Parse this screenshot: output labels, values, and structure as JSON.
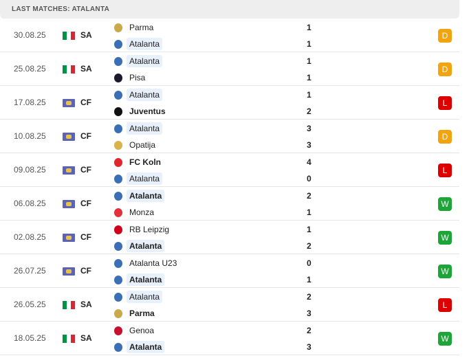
{
  "header": "LAST MATCHES: ATALANTA",
  "colors": {
    "D": "#f2a40e",
    "L": "#dc0000",
    "W": "#1ea537",
    "highlight": "#e8f0fb"
  },
  "matches": [
    {
      "date": "30.08.25",
      "flag": "italy",
      "comp": "SA",
      "home": "Parma",
      "away": "Atalanta",
      "hs": "1",
      "as": "1",
      "result": "D",
      "winner": "",
      "hl": "away",
      "hlogo": "#c9a94a",
      "alogo": "#3a6fb5"
    },
    {
      "date": "25.08.25",
      "flag": "italy",
      "comp": "SA",
      "home": "Atalanta",
      "away": "Pisa",
      "hs": "1",
      "as": "1",
      "result": "D",
      "winner": "",
      "hl": "home",
      "hlogo": "#3a6fb5",
      "alogo": "#1a1a2e"
    },
    {
      "date": "17.08.25",
      "flag": "world",
      "comp": "CF",
      "home": "Atalanta",
      "away": "Juventus",
      "hs": "1",
      "as": "2",
      "result": "L",
      "winner": "away",
      "hl": "home",
      "hlogo": "#3a6fb5",
      "alogo": "#111111"
    },
    {
      "date": "10.08.25",
      "flag": "world",
      "comp": "CF",
      "home": "Atalanta",
      "away": "Opatija",
      "hs": "3",
      "as": "3",
      "result": "D",
      "winner": "",
      "hl": "home",
      "hlogo": "#3a6fb5",
      "alogo": "#d9b24a"
    },
    {
      "date": "09.08.25",
      "flag": "world",
      "comp": "CF",
      "home": "FC Koln",
      "away": "Atalanta",
      "hs": "4",
      "as": "0",
      "result": "L",
      "winner": "home",
      "hl": "away",
      "hlogo": "#e0262c",
      "alogo": "#3a6fb5"
    },
    {
      "date": "06.08.25",
      "flag": "world",
      "comp": "CF",
      "home": "Atalanta",
      "away": "Monza",
      "hs": "2",
      "as": "1",
      "result": "W",
      "winner": "home",
      "hl": "home",
      "hlogo": "#3a6fb5",
      "alogo": "#e2313a"
    },
    {
      "date": "02.08.25",
      "flag": "world",
      "comp": "CF",
      "home": "RB Leipzig",
      "away": "Atalanta",
      "hs": "1",
      "as": "2",
      "result": "W",
      "winner": "away",
      "hl": "away",
      "hlogo": "#d0021b",
      "alogo": "#3a6fb5"
    },
    {
      "date": "26.07.25",
      "flag": "world",
      "comp": "CF",
      "home": "Atalanta U23",
      "away": "Atalanta",
      "hs": "0",
      "as": "1",
      "result": "W",
      "winner": "away",
      "hl": "away",
      "hlogo": "#3a6fb5",
      "alogo": "#3a6fb5"
    },
    {
      "date": "26.05.25",
      "flag": "italy",
      "comp": "SA",
      "home": "Atalanta",
      "away": "Parma",
      "hs": "2",
      "as": "3",
      "result": "L",
      "winner": "away",
      "hl": "home",
      "hlogo": "#3a6fb5",
      "alogo": "#c9a94a"
    },
    {
      "date": "18.05.25",
      "flag": "italy",
      "comp": "SA",
      "home": "Genoa",
      "away": "Atalanta",
      "hs": "2",
      "as": "3",
      "result": "W",
      "winner": "away",
      "hl": "away",
      "hlogo": "#c8102e",
      "alogo": "#3a6fb5"
    }
  ]
}
